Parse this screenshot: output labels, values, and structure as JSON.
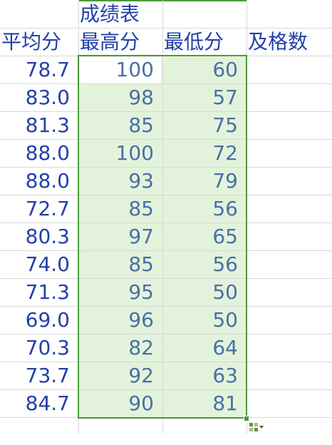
{
  "sheet": {
    "title": "成绩表",
    "headers": {
      "avg": "平均分",
      "max": "最高分",
      "min": "最低分",
      "pass_count": "及格数"
    },
    "rows": [
      {
        "avg": "78.7",
        "max": "100",
        "min": "60"
      },
      {
        "avg": "83.0",
        "max": "98",
        "min": "57"
      },
      {
        "avg": "81.3",
        "max": "85",
        "min": "75"
      },
      {
        "avg": "88.0",
        "max": "100",
        "min": "72"
      },
      {
        "avg": "88.0",
        "max": "93",
        "min": "79"
      },
      {
        "avg": "72.7",
        "max": "85",
        "min": "56"
      },
      {
        "avg": "80.3",
        "max": "97",
        "min": "65"
      },
      {
        "avg": "74.0",
        "max": "85",
        "min": "56"
      },
      {
        "avg": "71.3",
        "max": "95",
        "min": "50"
      },
      {
        "avg": "69.0",
        "max": "96",
        "min": "50"
      },
      {
        "avg": "70.3",
        "max": "82",
        "min": "64"
      },
      {
        "avg": "73.7",
        "max": "92",
        "min": "63"
      },
      {
        "avg": "84.7",
        "max": "90",
        "min": "81"
      }
    ]
  },
  "icons": {
    "quick_analysis": "quick-analysis-icon"
  },
  "colors": {
    "text_blue": "#2340a8",
    "selected_text": "#4a6fa5",
    "selection_fill": "#e3f3db",
    "selection_border": "#4a9a3a"
  }
}
